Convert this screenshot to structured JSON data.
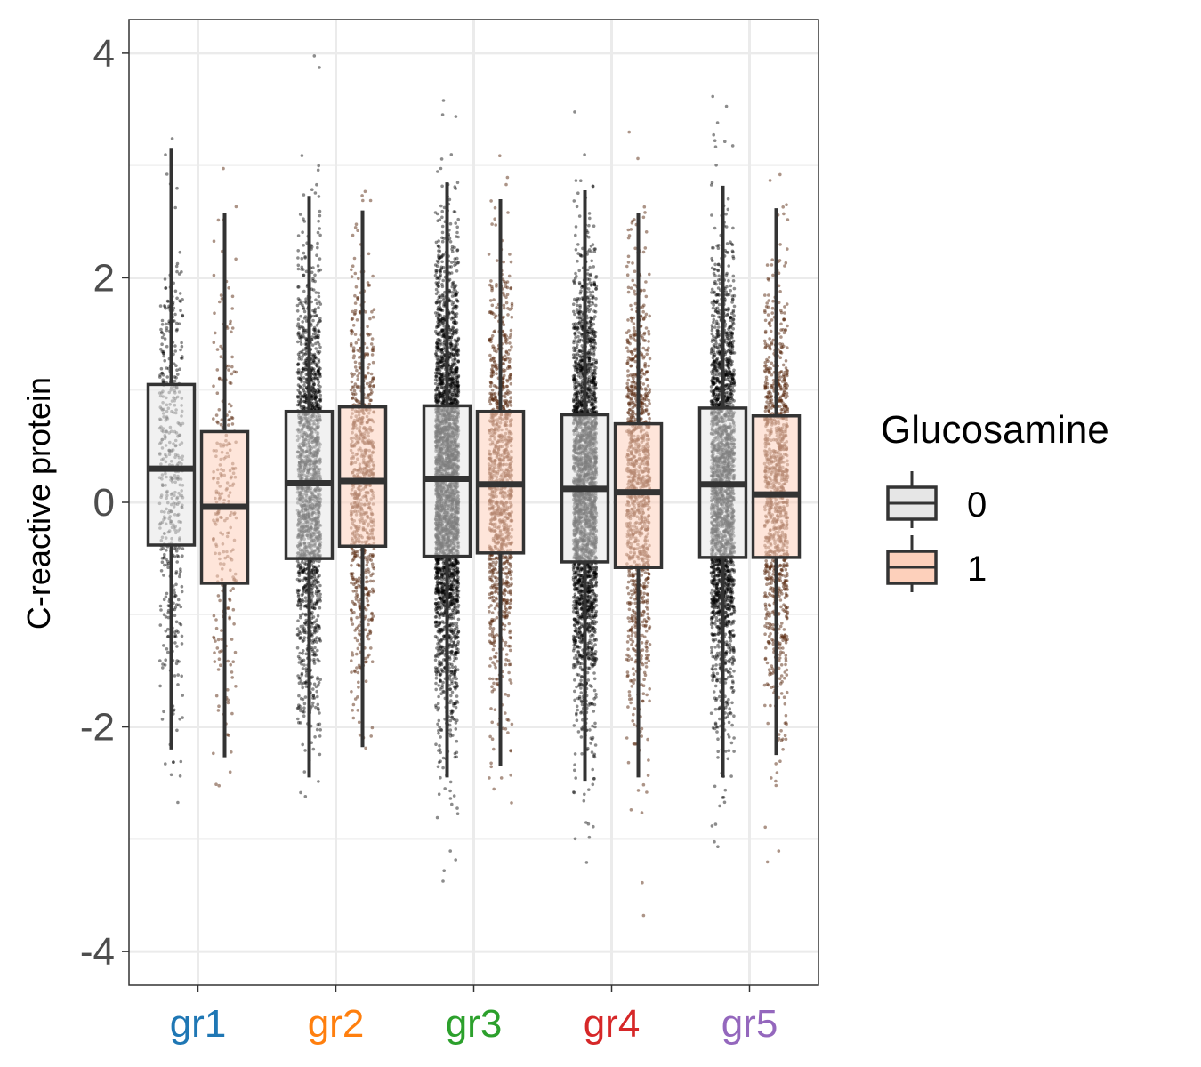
{
  "chart_data": {
    "type": "boxplot",
    "ylabel": "C-reactive protein",
    "xlabel": "",
    "ylim": [
      -4.3,
      4.3
    ],
    "yticks": [
      -4,
      -2,
      0,
      2,
      4
    ],
    "y_tick_labels": [
      "-4",
      "-2",
      "0",
      "2",
      "4"
    ],
    "grid": true,
    "legend": {
      "title": "Glucosamine",
      "position": "right",
      "entries": [
        {
          "label": "0",
          "fill": "#e6e6e6"
        },
        {
          "label": "1",
          "fill": "#fdd0bb"
        }
      ]
    },
    "categories": [
      {
        "label": "gr1",
        "color": "#1f77b4"
      },
      {
        "label": "gr2",
        "color": "#ff7f0e"
      },
      {
        "label": "gr3",
        "color": "#2ca02c"
      },
      {
        "label": "gr4",
        "color": "#d62728"
      },
      {
        "label": "gr5",
        "color": "#9467bd"
      }
    ],
    "series": [
      {
        "name": "0",
        "box_fill": "#e6e6e6",
        "point_density": [
          0.15,
          0.55,
          0.95,
          0.85,
          0.75
        ],
        "boxes": [
          {
            "whisker_low": -2.2,
            "q1": -0.38,
            "median": 0.3,
            "q3": 1.05,
            "whisker_high": 3.15
          },
          {
            "whisker_low": -2.45,
            "q1": -0.5,
            "median": 0.17,
            "q3": 0.81,
            "whisker_high": 2.73
          },
          {
            "whisker_low": -2.45,
            "q1": -0.48,
            "median": 0.21,
            "q3": 0.86,
            "whisker_high": 2.85
          },
          {
            "whisker_low": -2.48,
            "q1": -0.53,
            "median": 0.12,
            "q3": 0.78,
            "whisker_high": 2.78
          },
          {
            "whisker_low": -2.45,
            "q1": -0.49,
            "median": 0.16,
            "q3": 0.84,
            "whisker_high": 2.82
          }
        ]
      },
      {
        "name": "1",
        "box_fill": "#fdd0bb",
        "point_density": [
          0.08,
          0.25,
          0.35,
          0.35,
          0.35
        ],
        "boxes": [
          {
            "whisker_low": -2.27,
            "q1": -0.72,
            "median": -0.04,
            "q3": 0.63,
            "whisker_high": 2.58
          },
          {
            "whisker_low": -2.18,
            "q1": -0.39,
            "median": 0.19,
            "q3": 0.85,
            "whisker_high": 2.6
          },
          {
            "whisker_low": -2.35,
            "q1": -0.45,
            "median": 0.16,
            "q3": 0.81,
            "whisker_high": 2.7
          },
          {
            "whisker_low": -2.45,
            "q1": -0.58,
            "median": 0.09,
            "q3": 0.7,
            "whisker_high": 2.58
          },
          {
            "whisker_low": -2.25,
            "q1": -0.49,
            "median": 0.07,
            "q3": 0.77,
            "whisker_high": 2.62
          }
        ]
      }
    ]
  }
}
